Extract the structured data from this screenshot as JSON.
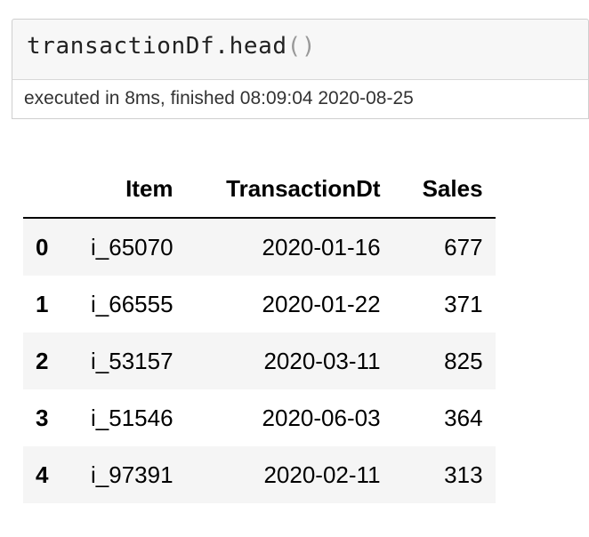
{
  "cell": {
    "code": {
      "object": "transactionDf",
      "dot": ".",
      "method": "head",
      "parens": "()"
    },
    "exec_info": "executed in 8ms, finished 08:09:04 2020-08-25"
  },
  "dataframe": {
    "columns": [
      "",
      "Item",
      "TransactionDt",
      "Sales"
    ],
    "rows": [
      {
        "index": "0",
        "item": "i_65070",
        "date": "2020-01-16",
        "sales": "677"
      },
      {
        "index": "1",
        "item": "i_66555",
        "date": "2020-01-22",
        "sales": "371"
      },
      {
        "index": "2",
        "item": "i_53157",
        "date": "2020-03-11",
        "sales": "825"
      },
      {
        "index": "3",
        "item": "i_51546",
        "date": "2020-06-03",
        "sales": "364"
      },
      {
        "index": "4",
        "item": "i_97391",
        "date": "2020-02-11",
        "sales": "313"
      }
    ]
  }
}
